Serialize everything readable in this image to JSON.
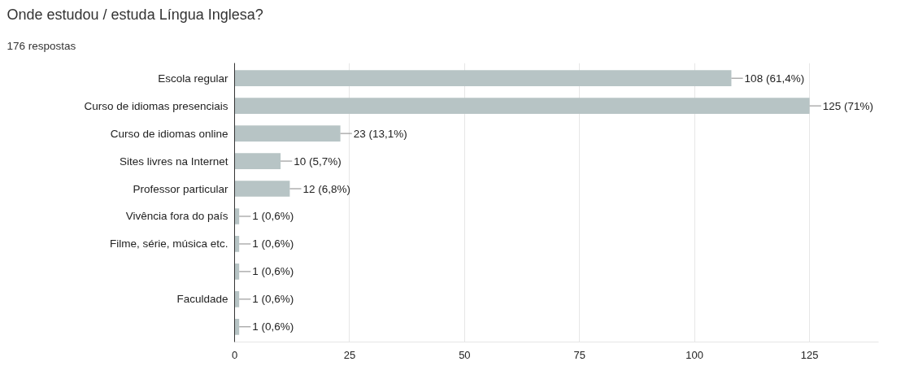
{
  "chart_data": {
    "type": "bar",
    "orientation": "horizontal",
    "title": "Onde estudou / estuda Língua Inglesa?",
    "subtitle": "176 respostas",
    "categories": [
      "Escola regular",
      "Curso de idiomas presenciais",
      "Curso de idiomas online",
      "Sites livres na Internet",
      "Professor particular",
      "Vivência fora do país",
      "Filme, série, música etc.",
      null,
      "Faculdade",
      null
    ],
    "values": [
      108,
      125,
      23,
      10,
      12,
      1,
      1,
      1,
      1,
      1
    ],
    "value_labels": [
      "108 (61,4%)",
      "125 (71%)",
      "23 (13,1%)",
      "10 (5,7%)",
      "12 (6,8%)",
      "1 (0,6%)",
      "1 (0,6%)",
      "1 (0,6%)",
      "1 (0,6%)",
      "1 (0,6%)"
    ],
    "color": "#b7c4c5",
    "xlim": [
      0,
      140
    ],
    "xticks": [
      0,
      25,
      50,
      75,
      100,
      125
    ],
    "grid": "x"
  }
}
